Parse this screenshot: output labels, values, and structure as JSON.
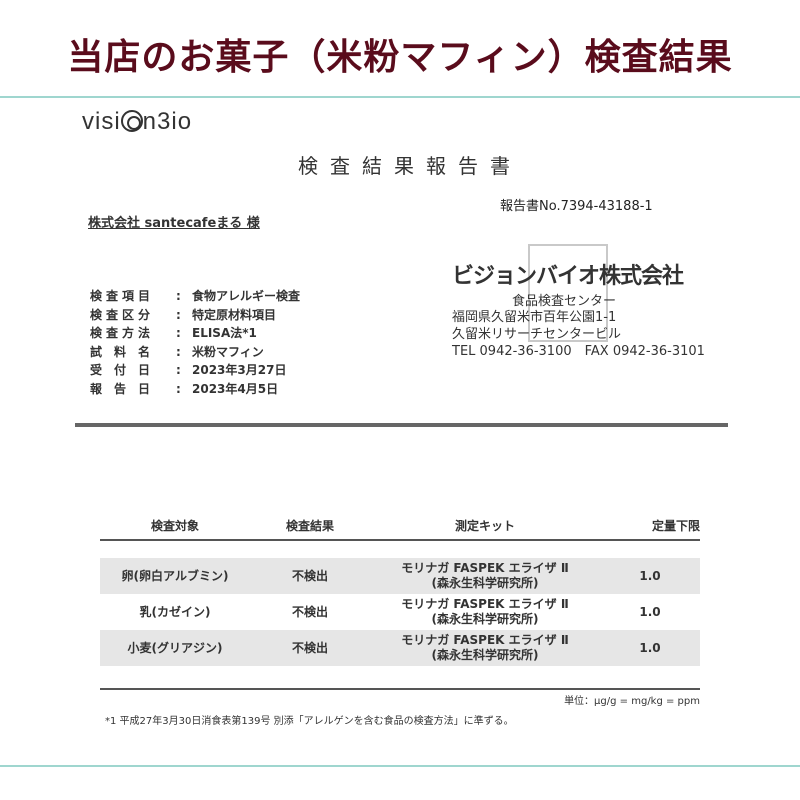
{
  "page_title": "当店のお菓子（米粉マフィン）検査結果",
  "logo": "VISIONBIO",
  "report": {
    "title": "検査結果報告書",
    "number": "報告書No.7394-43188-1",
    "client": "株式会社 santecafeまる 様",
    "fields": [
      {
        "key": "検査項目",
        "value": "食物アレルギー検査"
      },
      {
        "key": "検査区分",
        "value": "特定原材料項目"
      },
      {
        "key": "検査方法",
        "value": "ELISA法*1"
      },
      {
        "key": "試料名",
        "value": "米粉マフィン"
      },
      {
        "key": "受付日",
        "value": "2023年3月27日"
      },
      {
        "key": "報告日",
        "value": "2023年4月5日"
      }
    ],
    "issuer": {
      "name": "ビジョンバイオ株式会社",
      "center": "食品検査センター",
      "address1": "福岡県久留米市百年公園1-1",
      "address2": "久留米リサーチセンタービル",
      "phone": "TEL 0942-36-3100　FAX 0942-36-3101"
    },
    "table": {
      "headers": [
        "検査対象",
        "検査結果",
        "測定キット",
        "定量下限"
      ],
      "rows": [
        {
          "target": "卵(卵白アルブミン)",
          "result": "不検出",
          "kit1": "モリナガ FASPEK エライザ Ⅱ",
          "kit2": "(森永生科学研究所)",
          "limit": "1.0"
        },
        {
          "target": "乳(カゼイン)",
          "result": "不検出",
          "kit1": "モリナガ FASPEK エライザ Ⅱ",
          "kit2": "(森永生科学研究所)",
          "limit": "1.0"
        },
        {
          "target": "小麦(グリアジン)",
          "result": "不検出",
          "kit1": "モリナガ FASPEK エライザ Ⅱ",
          "kit2": "(森永生科学研究所)",
          "limit": "1.0"
        }
      ]
    },
    "unit": "単位：μg/g = mg/kg = ppm",
    "footnote": "*1 平成27年3月30日消食表第139号 別添「アレルゲンを含む食品の検査方法」に準ずる。"
  }
}
